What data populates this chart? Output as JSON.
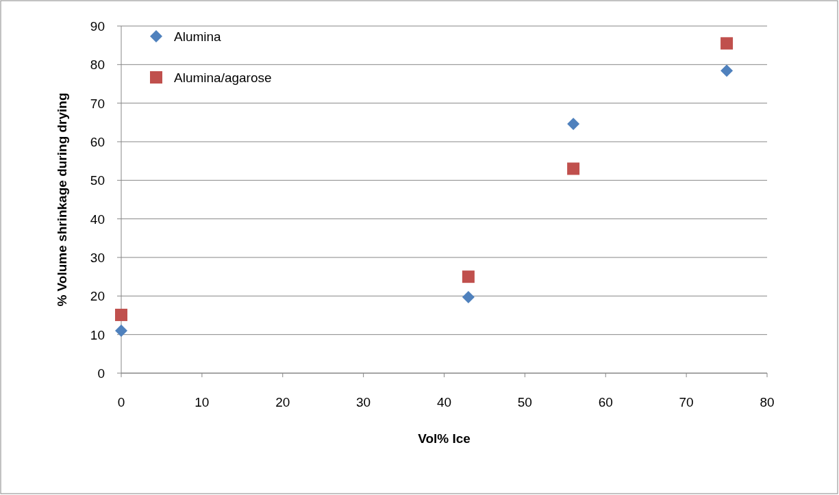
{
  "chart_data": {
    "type": "scatter",
    "xlabel": "Vol% Ice",
    "ylabel": "% Volume shrinkage during drying",
    "xlim": [
      0,
      80
    ],
    "xticks": [
      0,
      10,
      20,
      30,
      40,
      50,
      60,
      70,
      80
    ],
    "ylim": [
      0,
      90
    ],
    "yticks": [
      0,
      10,
      20,
      30,
      40,
      50,
      60,
      70,
      80,
      90
    ],
    "grid": "y",
    "legend": "top left",
    "series": [
      {
        "name": "Alumina",
        "color": "#4f81bd",
        "marker": "diamond",
        "x": [
          0,
          43,
          56,
          75
        ],
        "values": [
          11,
          19.7,
          64.6,
          78.4
        ]
      },
      {
        "name": "Alumina/agarose",
        "color": "#c0504d",
        "marker": "square",
        "x": [
          0,
          43,
          56,
          75
        ],
        "values": [
          15.1,
          25,
          53,
          85.5
        ]
      }
    ]
  }
}
